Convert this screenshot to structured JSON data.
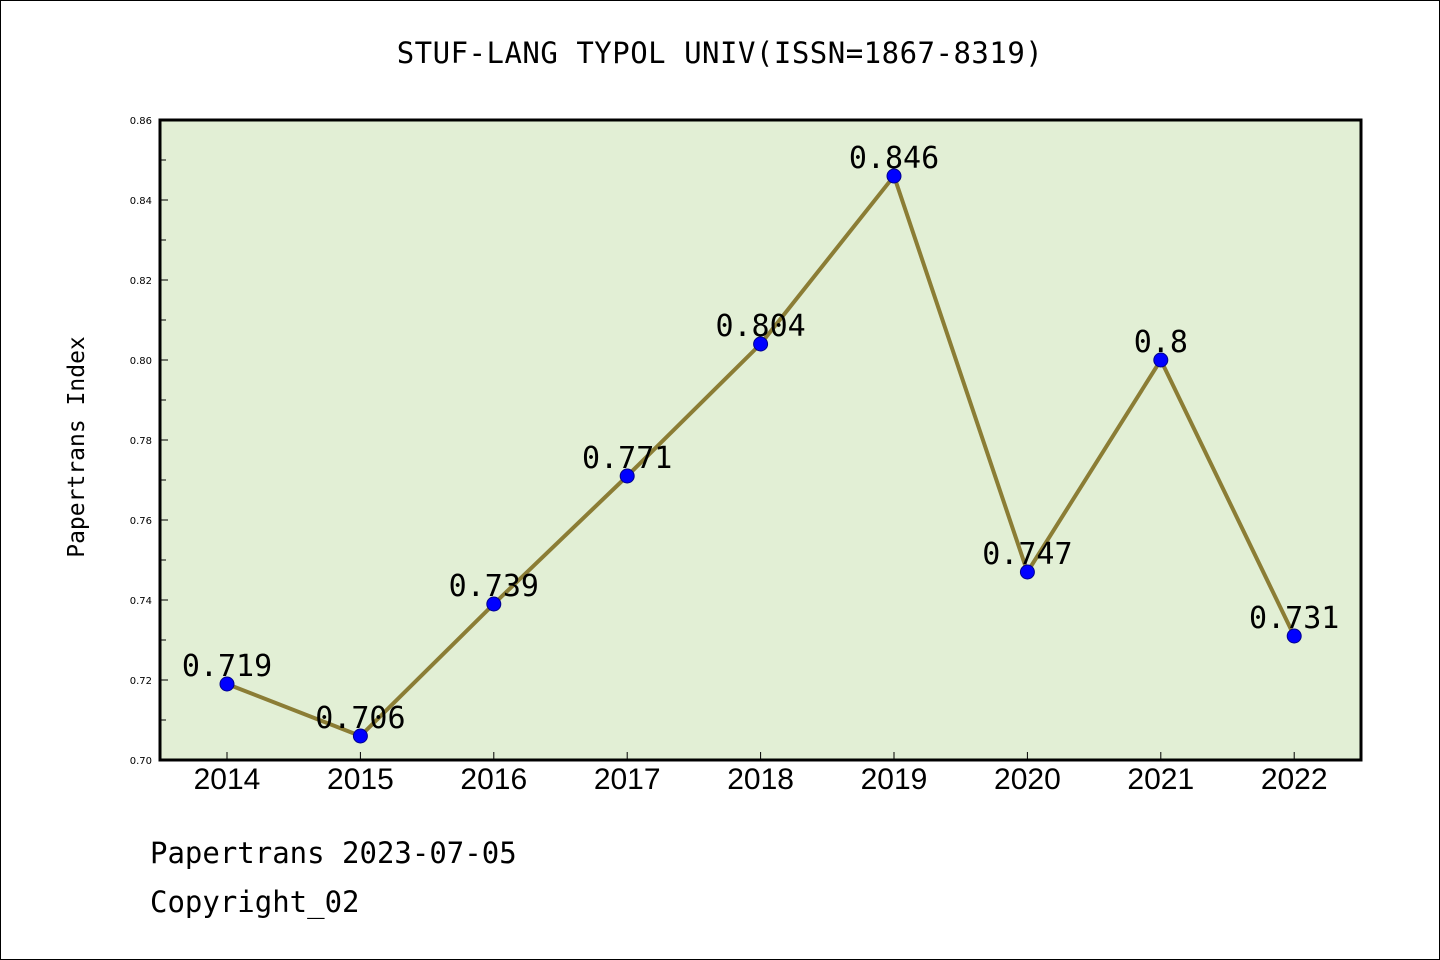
{
  "title": "STUF-LANG TYPOL UNIV(ISSN=1867-8319)",
  "footer": {
    "line1": "Papertrans 2023-07-05",
    "line2": "Copyright_02"
  },
  "colors": {
    "plot_bg": "#e2efd5",
    "line": "#8b7d35",
    "marker": "#0000ff"
  },
  "chart_data": {
    "type": "line",
    "ylabel": "Papertrans Index",
    "categories": [
      "2014",
      "2015",
      "2016",
      "2017",
      "2018",
      "2019",
      "2020",
      "2021",
      "2022"
    ],
    "values": [
      0.719,
      0.706,
      0.739,
      0.771,
      0.804,
      0.846,
      0.747,
      0.8,
      0.731
    ],
    "data_labels": [
      "0.719",
      "0.706",
      "0.739",
      "0.771",
      "0.804",
      "0.846",
      "0.747",
      "0.8",
      "0.731"
    ],
    "ylim": [
      0.7,
      0.86
    ],
    "yticks": [
      "0.70",
      "0.72",
      "0.74",
      "0.76",
      "0.78",
      "0.80",
      "0.82",
      "0.84",
      "0.86"
    ],
    "grid": false,
    "legend": "none"
  }
}
